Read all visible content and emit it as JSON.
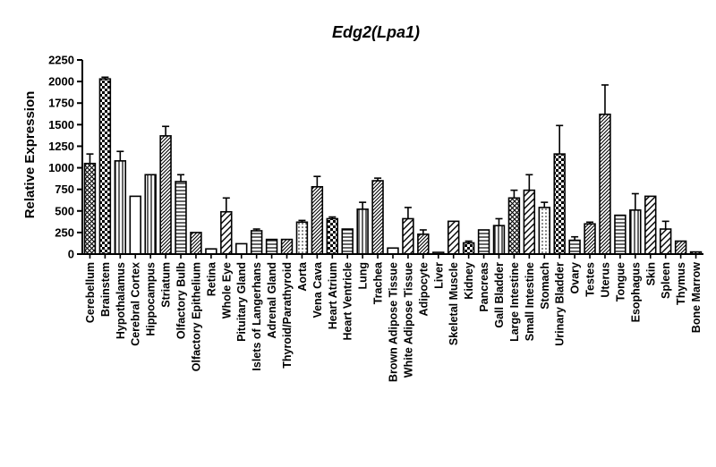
{
  "chart_data": {
    "type": "bar",
    "title": "Edg2(Lpa1)",
    "ylabel": "Relative Expression",
    "xlabel": "",
    "ylim": [
      0,
      2250
    ],
    "yticks": [
      0,
      250,
      500,
      750,
      1000,
      1250,
      1500,
      1750,
      2000,
      2250
    ],
    "grid": false,
    "error_bars": true,
    "categories": [
      "Cerebellum",
      "Brainstem",
      "Hypothalamus",
      "Cerebral Cortex",
      "Hippocampus",
      "Striatum",
      "Olfactory Bulb",
      "Olfactory Epithelium",
      "Retina",
      "Whole Eye",
      "Pituitary Gland",
      "Islets of Langerhans",
      "Adrenal Gland",
      "Thyroid/Parathyroid",
      "Aorta",
      "Vena Cava",
      "Heart Atrium",
      "Heart Ventricle",
      "Lung",
      "Trachea",
      "Brown Adipose Tissue",
      "White Adipose Tissue",
      "Adipocyte",
      "Liver",
      "Skeletal Muscle",
      "Kidney",
      "Pancreas",
      "Gall Bladder",
      "Large Intestine",
      "Small Intestine",
      "Stomach",
      "Urinary Bladder",
      "Ovary",
      "Testes",
      "Uterus",
      "Tongue",
      "Esophagus",
      "Skin",
      "Spleen",
      "Thymus",
      "Bone Marrow"
    ],
    "values": [
      1050,
      2030,
      1080,
      670,
      920,
      1370,
      840,
      250,
      60,
      490,
      120,
      270,
      170,
      170,
      370,
      780,
      410,
      290,
      520,
      850,
      70,
      410,
      230,
      20,
      380,
      130,
      280,
      330,
      650,
      740,
      540,
      1160,
      160,
      350,
      1620,
      450,
      510,
      670,
      290,
      150,
      25
    ],
    "errors": [
      110,
      20,
      110,
      0,
      0,
      110,
      80,
      0,
      0,
      160,
      0,
      20,
      0,
      0,
      20,
      120,
      20,
      0,
      80,
      30,
      0,
      130,
      50,
      0,
      0,
      20,
      0,
      80,
      90,
      180,
      60,
      330,
      40,
      20,
      340,
      0,
      190,
      0,
      90,
      0,
      0
    ],
    "patterns": [
      "crosshatch",
      "checker",
      "vlines",
      "blank",
      "vlines",
      "diag-dense",
      "hlines",
      "diag-dense",
      "blank",
      "diag-wide",
      "blank",
      "hlines",
      "hlines",
      "diag-dense",
      "dots",
      "diag-dense",
      "checker",
      "hlines",
      "vlines",
      "diag-dense",
      "blank",
      "diag-wide",
      "diag-dense",
      "blank",
      "diag-wide",
      "checker",
      "hlines",
      "vlines",
      "crosshatch",
      "diag-wide",
      "dots",
      "checker",
      "hlines",
      "diag-dense",
      "diag-dense",
      "hlines",
      "vlines",
      "diag-wide",
      "diag-wide",
      "diag-dense",
      "diag-dense"
    ]
  }
}
